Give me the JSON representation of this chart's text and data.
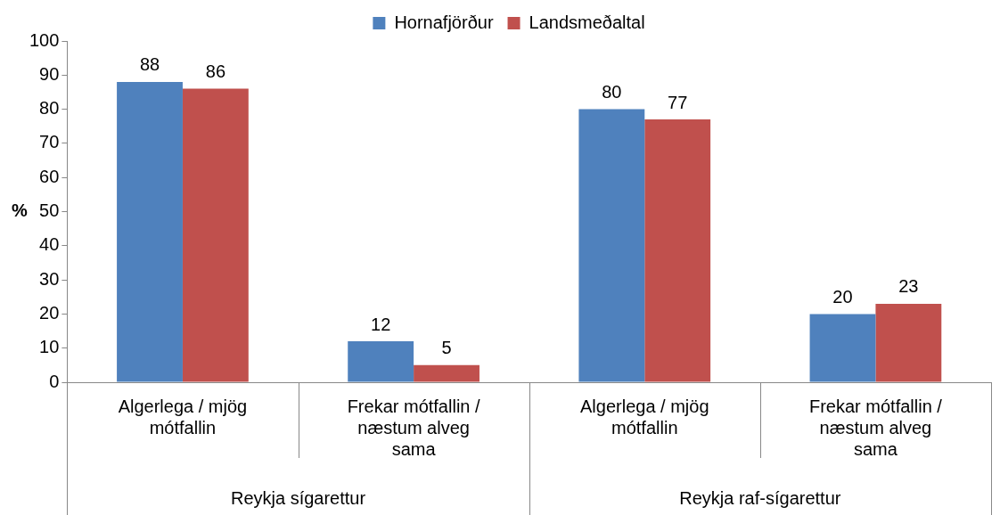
{
  "chart_data": {
    "type": "bar",
    "ylabel": "%",
    "categories": [
      "Algerlega / mjög mótfallin",
      "Frekar mótfallin / næstum alveg sama",
      "Algerlega / mjög mótfallin",
      "Frekar mótfallin / næstum alveg sama"
    ],
    "series": [
      {
        "name": "Hornafjörður",
        "color": "#4f81bd",
        "values": [
          88,
          12,
          80,
          20
        ]
      },
      {
        "name": "Landsmeðaltal",
        "color": "#c0504d",
        "values": [
          86,
          5,
          77,
          23
        ]
      }
    ],
    "ylim": [
      0,
      100
    ],
    "yticks": [
      0,
      10,
      20,
      30,
      40,
      50,
      60,
      70,
      80,
      90,
      100
    ],
    "data_labels": true,
    "grid": false,
    "legend": "top",
    "annotations": [
      "Reykja sígarettur",
      "Reykja raf-sígarettur"
    ]
  }
}
